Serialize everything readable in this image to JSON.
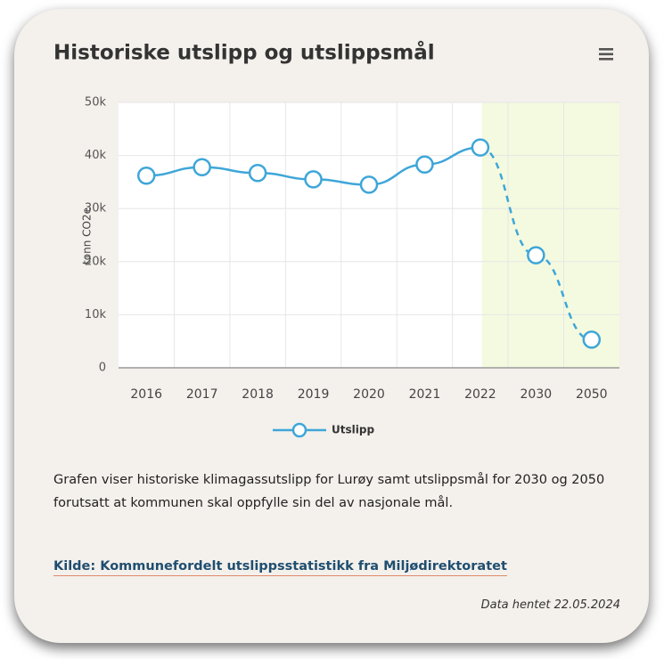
{
  "chart_data": {
    "type": "line",
    "title": "Historiske utslipp og utslippsmål",
    "categories": [
      "2016",
      "2017",
      "2018",
      "2019",
      "2020",
      "2021",
      "2022",
      "2030",
      "2050"
    ],
    "series": [
      {
        "name": "Utslipp",
        "color": "#3ea6d8",
        "values": [
          36200,
          37800,
          36700,
          35500,
          34500,
          38300,
          41500,
          21200,
          5300
        ]
      }
    ],
    "ylabel": "tonn CO2e",
    "ylim": [
      0,
      50000
    ],
    "yticks": [
      0,
      {
        "value": 10000,
        "label": "10k"
      },
      {
        "value": 20000,
        "label": "20k"
      },
      {
        "value": 30000,
        "label": "30k"
      },
      {
        "value": 40000,
        "label": "40k"
      },
      {
        "value": 50000,
        "label": "50k"
      }
    ],
    "grid": true,
    "dashed_from": "2022",
    "band_color": "#f4fadf",
    "legend": "bottom"
  },
  "description": "Grafen viser historiske klimagassutslipp for Lurøy samt utslippsmål for 2030 og 2050 forutsatt at kommunen skal oppfylle sin del av nasjonale mål.",
  "source": "Kilde: Kommunefordelt utslippsstatistikk fra Miljødirektoratet",
  "fetched": "Data hentet 22.05.2024"
}
